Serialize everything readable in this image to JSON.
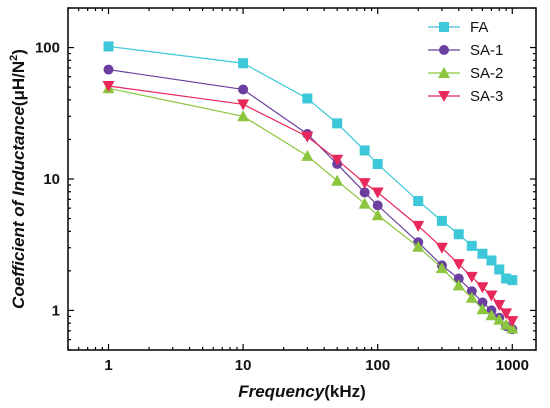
{
  "chart_data": {
    "type": "line",
    "xscale": "log",
    "yscale": "log",
    "xlim": [
      0.5,
      1500
    ],
    "ylim": [
      0.5,
      200
    ],
    "xlabel": "Frequency",
    "xlabel_unit": "(kHz)",
    "ylabel": "Coefficient of Inductance",
    "ylabel_unit": "(μH/N",
    "ylabel_sup": "2",
    "ylabel_tail": ")",
    "x_ticks": [
      {
        "value": 1,
        "label": "1"
      },
      {
        "value": 10,
        "label": "10"
      },
      {
        "value": 100,
        "label": "100"
      },
      {
        "value": 1000,
        "label": "1000"
      }
    ],
    "y_ticks": [
      {
        "value": 1,
        "label": "1"
      },
      {
        "value": 10,
        "label": "10"
      },
      {
        "value": 100,
        "label": "100"
      }
    ],
    "legend_position": "top-right",
    "grid": false,
    "series": [
      {
        "name": "FA",
        "color": "#3cc8d8",
        "marker": "square",
        "x": [
          1,
          10,
          30,
          50,
          80,
          100,
          200,
          300,
          400,
          500,
          600,
          700,
          800,
          900,
          1000
        ],
        "y": [
          102,
          76,
          41,
          26.5,
          16.5,
          13,
          6.8,
          4.8,
          3.8,
          3.1,
          2.7,
          2.4,
          2.05,
          1.75,
          1.7
        ]
      },
      {
        "name": "SA-1",
        "color": "#6a3fa0",
        "marker": "circle",
        "x": [
          1,
          10,
          30,
          50,
          80,
          100,
          200,
          300,
          400,
          500,
          600,
          700,
          800,
          900,
          1000
        ],
        "y": [
          68,
          48,
          22,
          13,
          7.9,
          6.3,
          3.3,
          2.2,
          1.75,
          1.4,
          1.15,
          1.0,
          0.88,
          0.76,
          0.72
        ]
      },
      {
        "name": "SA-2",
        "color": "#8cc63f",
        "marker": "triangle-up",
        "x": [
          1,
          10,
          30,
          50,
          80,
          100,
          200,
          300,
          400,
          500,
          600,
          700,
          800,
          900,
          1000
        ],
        "y": [
          49,
          30,
          15,
          9.7,
          6.5,
          5.3,
          3.05,
          2.1,
          1.55,
          1.25,
          1.02,
          0.92,
          0.85,
          0.78,
          0.73
        ]
      },
      {
        "name": "SA-3",
        "color": "#e8285a",
        "marker": "triangle-down",
        "x": [
          1,
          10,
          30,
          50,
          80,
          100,
          200,
          300,
          400,
          500,
          600,
          700,
          800,
          900,
          1000
        ],
        "y": [
          51,
          37,
          21,
          14,
          9.3,
          7.9,
          4.4,
          3.0,
          2.25,
          1.8,
          1.5,
          1.3,
          1.1,
          0.95,
          0.83
        ]
      }
    ]
  }
}
